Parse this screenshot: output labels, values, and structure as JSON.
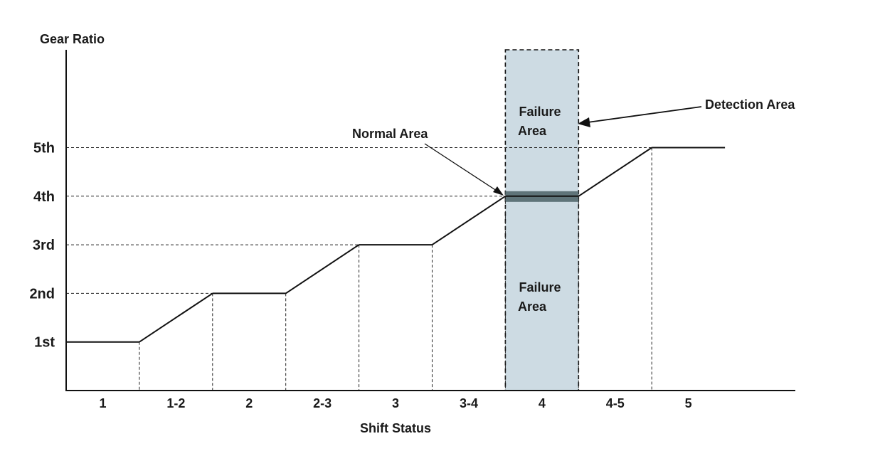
{
  "y_axis_title": "Gear Ratio",
  "x_axis_title": "Shift Status",
  "annotations": {
    "normal_area": "Normal Area",
    "detection_area": "Detection Area",
    "failure_area_upper": [
      "Failure",
      "Area"
    ],
    "failure_area_lower": [
      "Failure",
      "Area"
    ]
  },
  "colors": {
    "detection_fill": "#cddbe3",
    "normal_band": "#5f7479",
    "line": "#111111"
  },
  "chart_data": {
    "type": "line",
    "x_categories": [
      "1",
      "1-2",
      "2",
      "2-3",
      "3",
      "3-4",
      "4",
      "4-5",
      "5"
    ],
    "y_levels": [
      "1st",
      "2nd",
      "3rd",
      "4th",
      "5th"
    ],
    "gear_ratio_profile": [
      {
        "status": "1",
        "from": "1st",
        "to": "1st"
      },
      {
        "status": "1-2",
        "from": "1st",
        "to": "2nd"
      },
      {
        "status": "2",
        "from": "2nd",
        "to": "2nd"
      },
      {
        "status": "2-3",
        "from": "2nd",
        "to": "3rd"
      },
      {
        "status": "3",
        "from": "3rd",
        "to": "3rd"
      },
      {
        "status": "3-4",
        "from": "3rd",
        "to": "4th"
      },
      {
        "status": "4",
        "from": "4th",
        "to": "4th"
      },
      {
        "status": "4-5",
        "from": "4th",
        "to": "5th"
      },
      {
        "status": "5",
        "from": "5th",
        "to": "5th"
      }
    ],
    "detection_area_status": "4",
    "normal_area_level": "4th"
  }
}
